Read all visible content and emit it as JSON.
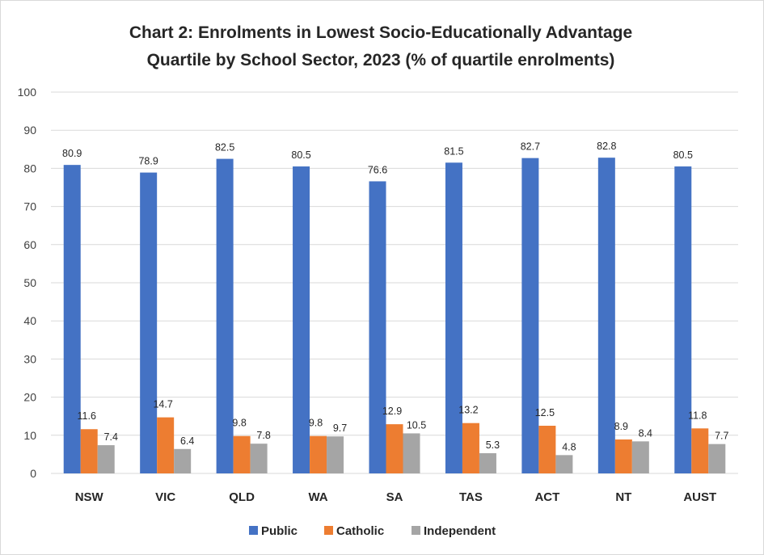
{
  "chart_data": {
    "type": "bar",
    "title_lines": [
      "Chart 2: Enrolments in Lowest Socio-Educationally Advantage",
      "Quartile by School Sector, 2023 (% of quartile enrolments)"
    ],
    "categories": [
      "NSW",
      "VIC",
      "QLD",
      "WA",
      "SA",
      "TAS",
      "ACT",
      "NT",
      "AUST"
    ],
    "series": [
      {
        "name": "Public",
        "color": "#4472c4",
        "values": [
          80.9,
          78.9,
          82.5,
          80.5,
          76.6,
          81.5,
          82.7,
          82.8,
          80.5
        ]
      },
      {
        "name": "Catholic",
        "color": "#ed7d31",
        "values": [
          11.6,
          14.7,
          9.8,
          9.8,
          12.9,
          13.2,
          12.5,
          8.9,
          11.8
        ]
      },
      {
        "name": "Independent",
        "color": "#a5a5a5",
        "values": [
          7.4,
          6.4,
          7.8,
          9.7,
          10.5,
          5.3,
          4.8,
          8.4,
          7.7
        ]
      }
    ],
    "ylim": [
      0,
      100
    ],
    "yticks": [
      0,
      10,
      20,
      30,
      40,
      50,
      60,
      70,
      80,
      90,
      100
    ],
    "xlabel": "",
    "ylabel": "",
    "grid": true,
    "legend_position": "bottom",
    "data_labels": true
  }
}
